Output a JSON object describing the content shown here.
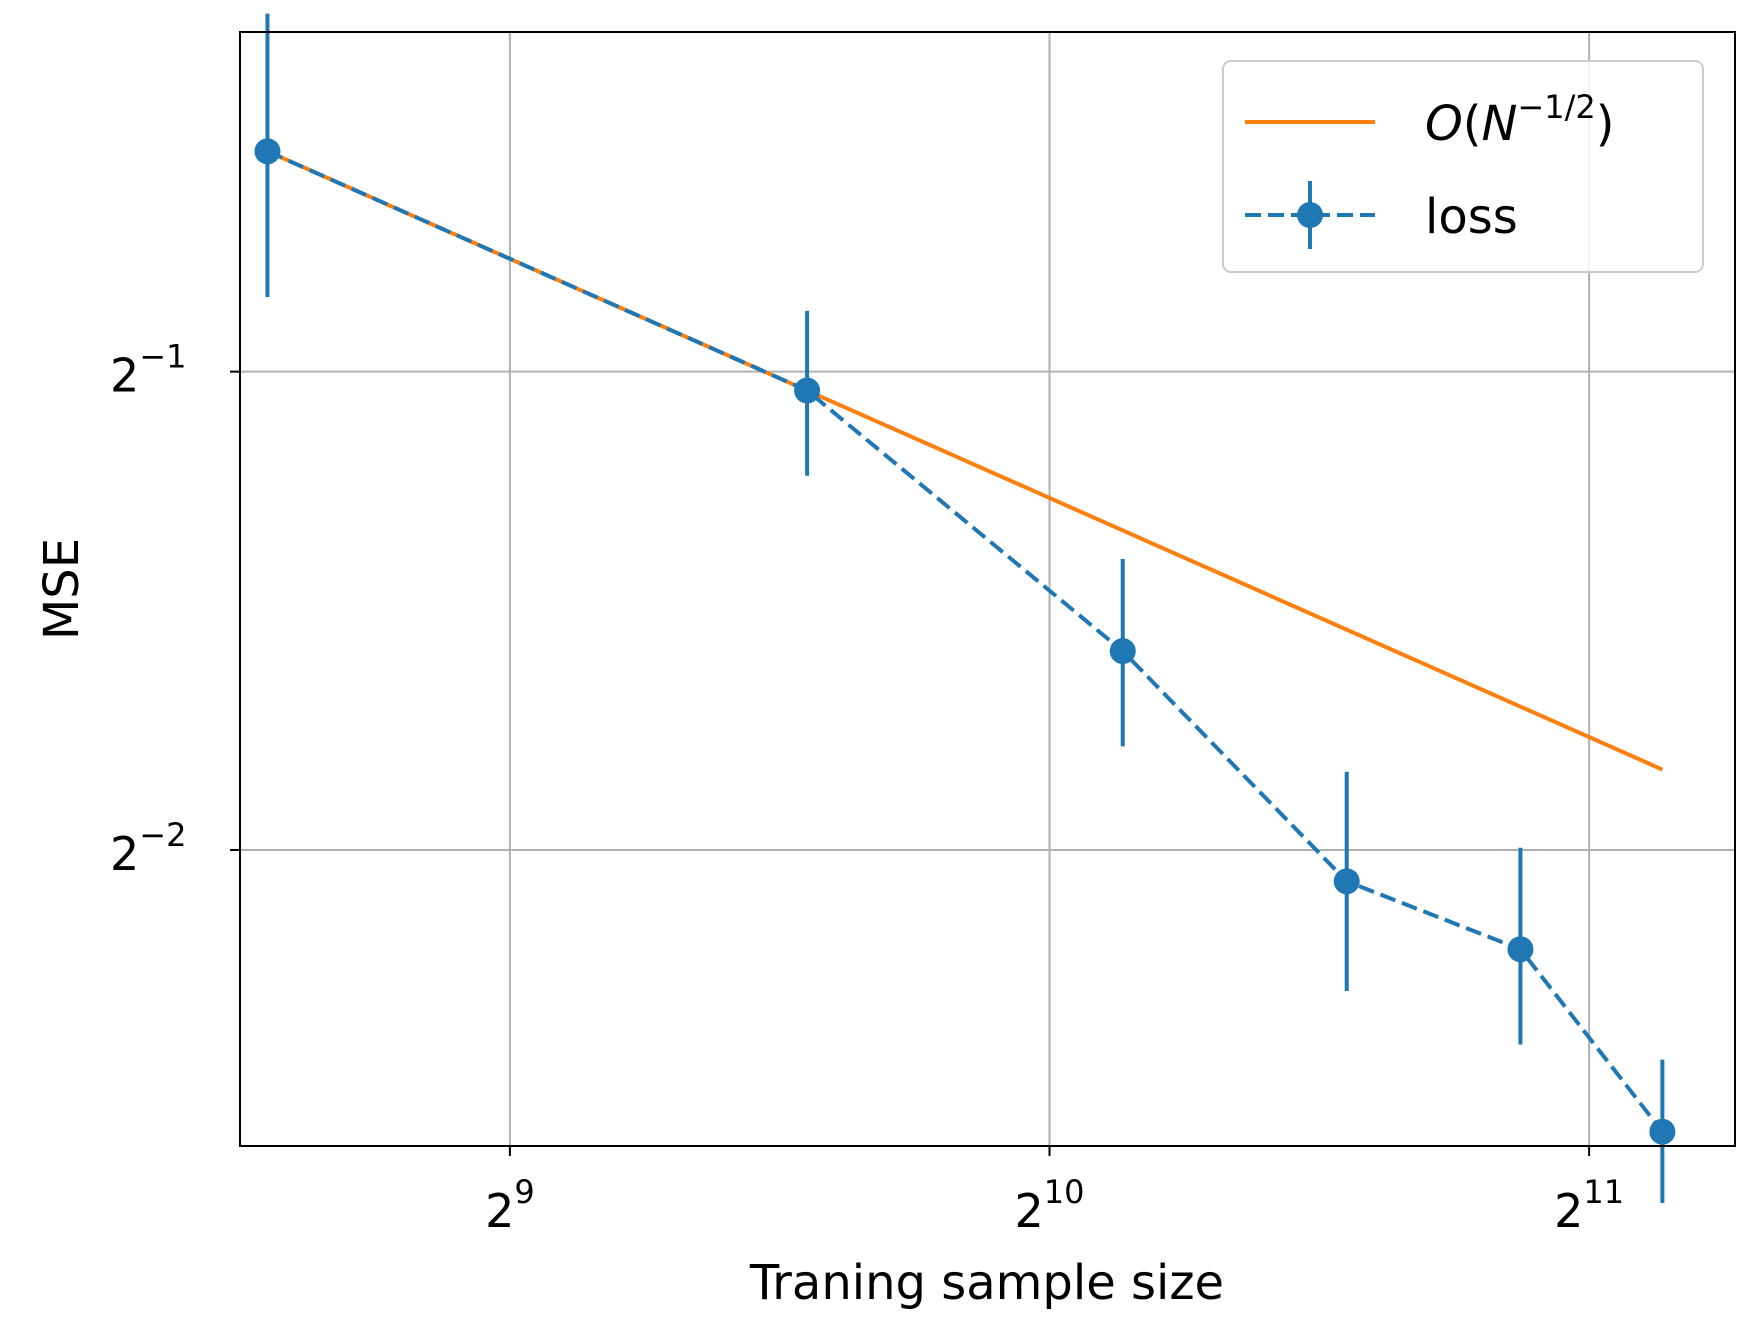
{
  "chart_data": {
    "type": "line",
    "xlabel": "Traning sample size",
    "ylabel": "MSE",
    "xscale": "log2",
    "yscale": "log2",
    "xlim": [
      362,
      2470
    ],
    "ylim": [
      0.1628,
      0.8179
    ],
    "grid": true,
    "legend_placement": "upper-right",
    "x_ticks": [
      {
        "base": "2",
        "exp": "9",
        "value": 512
      },
      {
        "base": "2",
        "exp": "10",
        "value": 1024
      },
      {
        "base": "2",
        "exp": "11",
        "value": 2048
      }
    ],
    "y_ticks": [
      {
        "base": "2",
        "exp": "−1",
        "value": 0.5
      },
      {
        "base": "2",
        "exp": "−2",
        "value": 0.25
      }
    ],
    "series": [
      {
        "name": "O(N⁻¹⁄²)",
        "name_parts": {
          "o": "O",
          "open": "(",
          "n": "N",
          "exp": "−1/2",
          "close": ")"
        },
        "kind": "line",
        "color": "#ff7f0e",
        "x": [
          375,
          750,
          2250
        ],
        "y": [
          0.688,
          0.4865,
          0.2809
        ]
      },
      {
        "name": "loss",
        "kind": "errorbar",
        "linestyle": "dashed",
        "marker": "circle",
        "color": "#1f77b4",
        "x": [
          375,
          750,
          1125,
          1500,
          1875,
          2250
        ],
        "y": [
          0.688,
          0.4865,
          0.3335,
          0.2389,
          0.2165,
          0.1662
        ],
        "yerr_low": [
          0.131,
          0.0565,
          0.043,
          0.0351,
          0.0279,
          0.0163
        ],
        "yerr_high": [
          0.152,
          0.0595,
          0.0476,
          0.0411,
          0.0343,
          0.0183
        ]
      }
    ]
  }
}
